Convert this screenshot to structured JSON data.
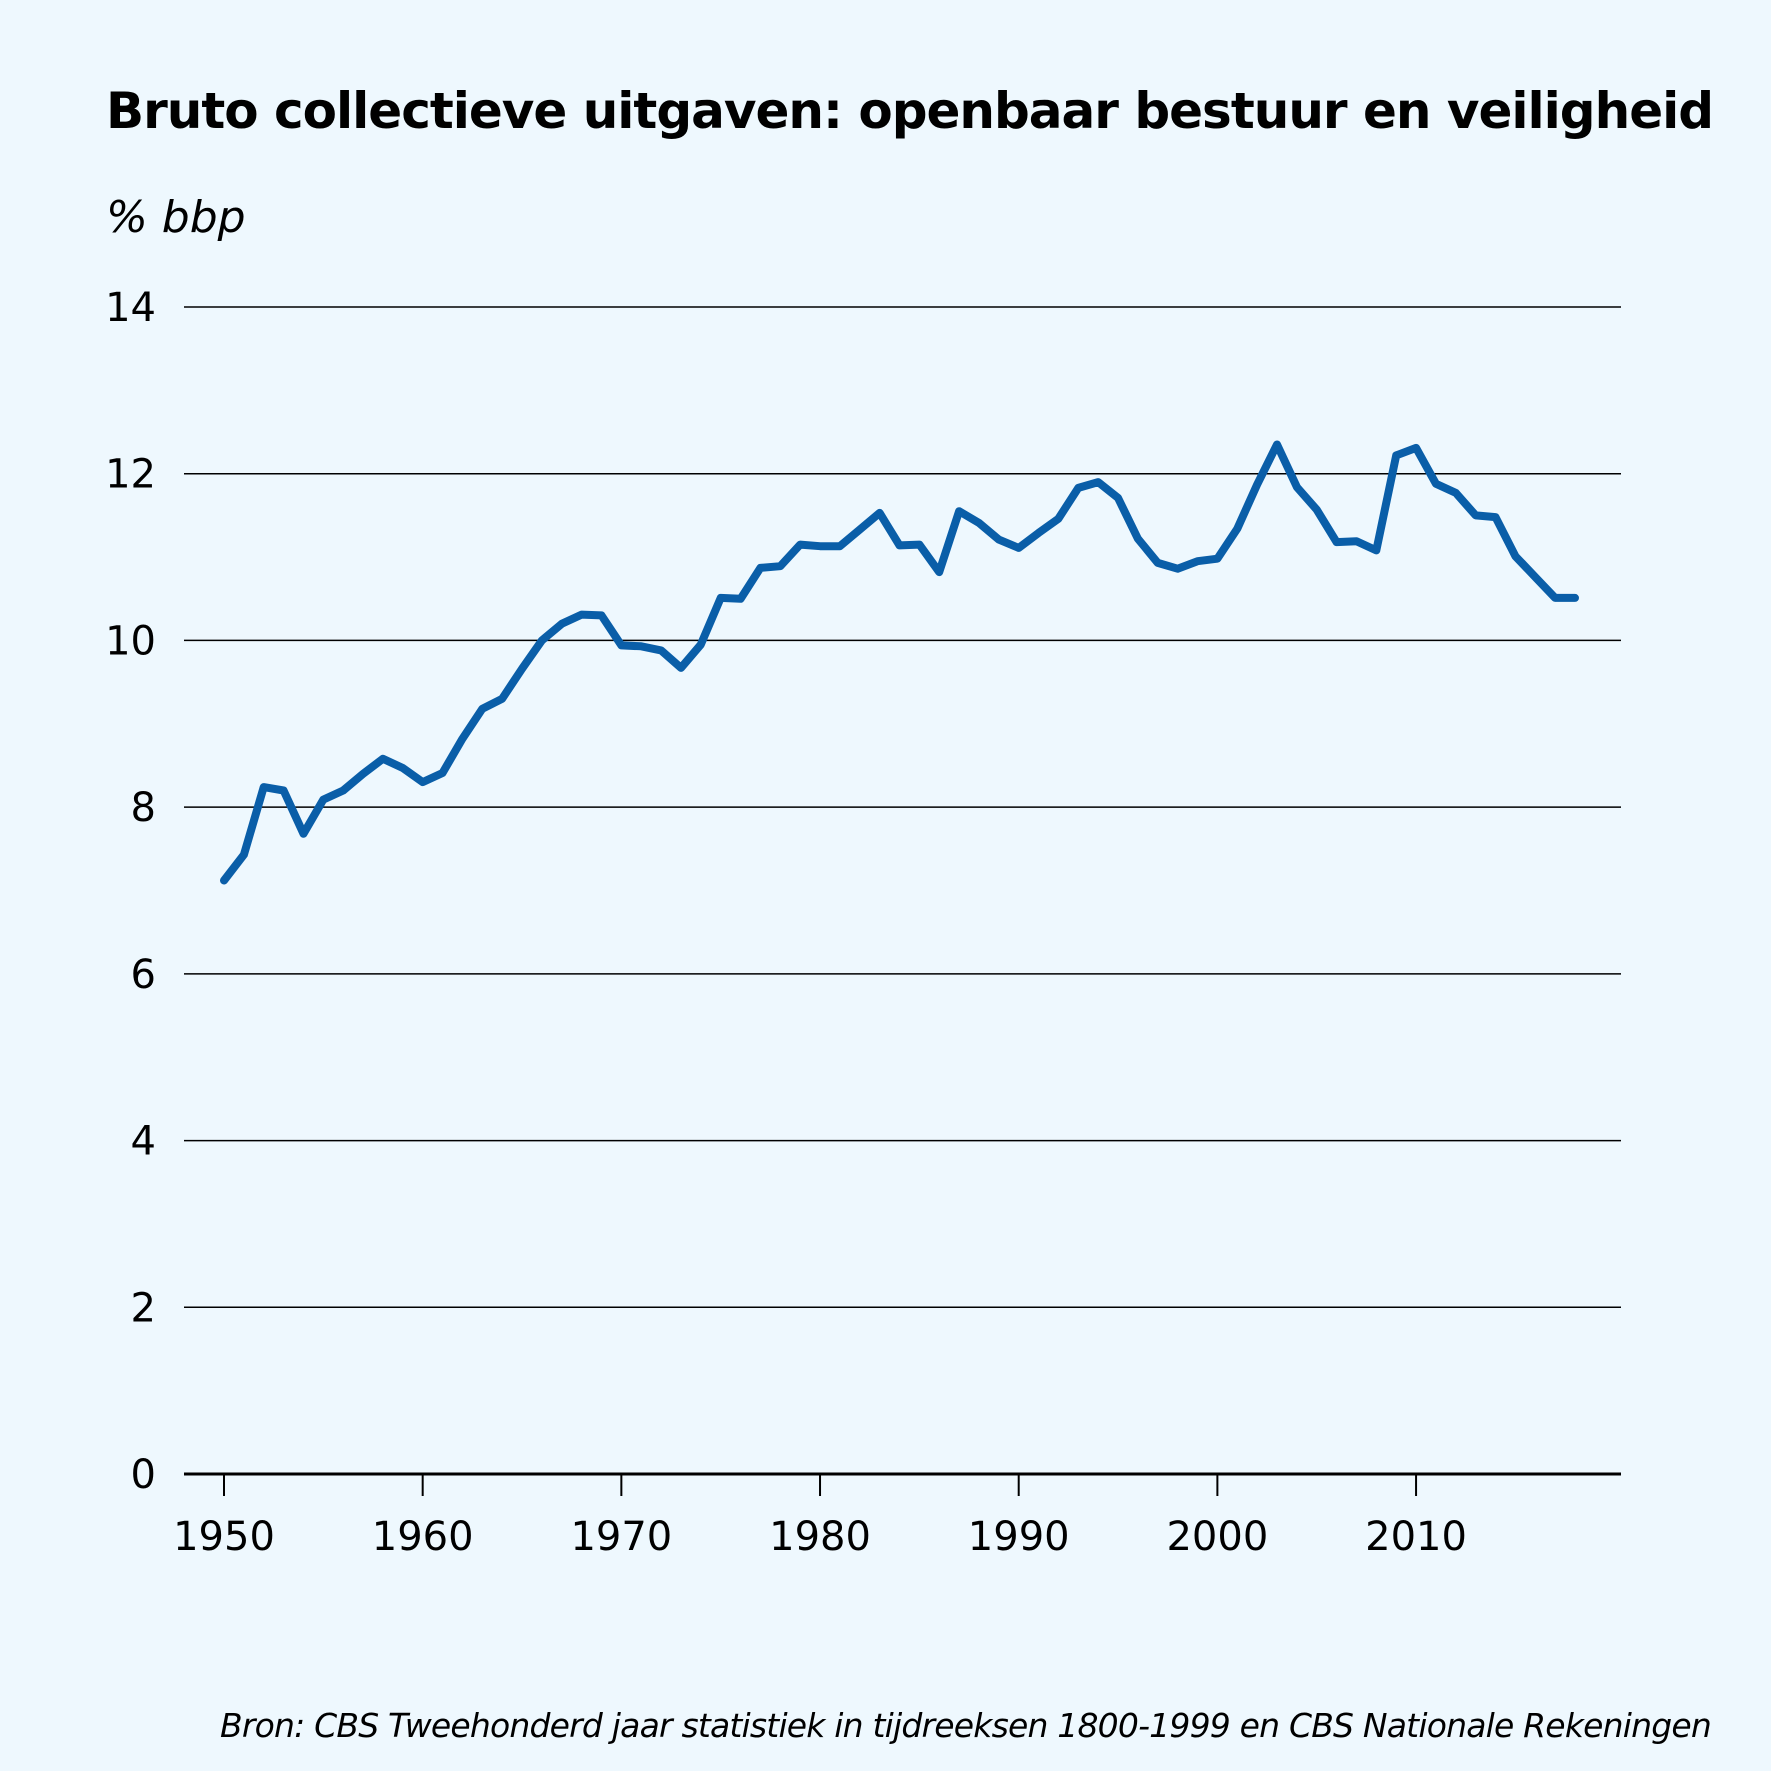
{
  "chart_data": {
    "type": "line",
    "title": "Bruto collectieve uitgaven: openbaar bestuur en veiligheid",
    "ylabel": "% bbp",
    "xlabel": "",
    "source": "Bron: CBS Tweehonderd jaar statistiek in tijdreeksen 1800-1999 en CBS Nationale Rekeningen",
    "ylim": [
      0,
      14
    ],
    "xlim": [
      1950,
      2018
    ],
    "yticks": [
      0,
      2,
      4,
      6,
      8,
      10,
      12,
      14
    ],
    "xticks": [
      1950,
      1960,
      1970,
      1980,
      1990,
      2000,
      2010
    ],
    "grid": true,
    "line_color": "#0a5ea8",
    "series": [
      {
        "x": [
          1950,
          1951,
          1952,
          1953,
          1954,
          1955,
          1956,
          1957,
          1958,
          1959,
          1960,
          1961,
          1962,
          1963,
          1964,
          1965,
          1966,
          1967,
          1968,
          1969,
          1970,
          1971,
          1972,
          1973,
          1974,
          1975,
          1976,
          1977,
          1978,
          1979,
          1980,
          1981,
          1982,
          1983,
          1984,
          1985,
          1986,
          1987,
          1988,
          1989,
          1990,
          1991,
          1992,
          1993,
          1994,
          1995,
          1996,
          1997,
          1998,
          1999,
          2000,
          2001,
          2002,
          2003,
          2004,
          2005,
          2006,
          2007,
          2008,
          2009,
          2010,
          2011,
          2012,
          2013,
          2014,
          2015,
          2016,
          2017,
          2018
        ],
        "y": [
          7.12,
          7.43,
          8.24,
          8.2,
          7.68,
          8.09,
          8.2,
          8.4,
          8.58,
          8.47,
          8.3,
          8.41,
          8.82,
          9.18,
          9.3,
          9.66,
          10.0,
          10.2,
          10.31,
          10.3,
          9.94,
          9.93,
          9.88,
          9.67,
          9.95,
          10.51,
          10.5,
          10.87,
          10.89,
          11.15,
          11.13,
          11.13,
          11.33,
          11.53,
          11.14,
          11.15,
          10.82,
          11.55,
          11.41,
          11.21,
          11.11,
          11.29,
          11.46,
          11.83,
          11.9,
          11.71,
          11.22,
          10.93,
          10.86,
          10.95,
          10.98,
          11.34,
          11.87,
          12.35,
          11.84,
          11.57,
          11.18,
          11.19,
          11.08,
          12.22,
          12.31,
          11.88,
          11.77,
          11.5,
          11.48,
          11.01,
          10.76,
          10.51,
          10.51
        ]
      }
    ]
  }
}
